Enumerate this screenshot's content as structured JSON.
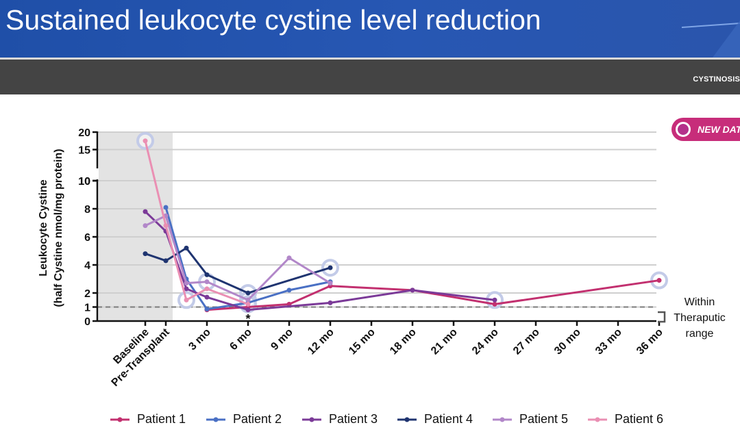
{
  "header": {
    "title": "Sustained leukocyte cystine level reduction",
    "brand": "CYSTINOSIS",
    "badge_label": "NEW DATA"
  },
  "colors": {
    "title_bar": "#2757b3",
    "sub_bar": "#444444",
    "badge": "#c72d7a",
    "baseline_shading": "#e3e3e3",
    "new_data_ring": "#c3cbe8"
  },
  "chart_data": {
    "type": "line",
    "ylabel_line1": "Leukocyte Cystine",
    "ylabel_line2": "(half Cystine nmol/mg protein)",
    "y_axis": {
      "broken": true,
      "upper_segment": {
        "range": [
          10,
          20
        ],
        "ticks": [
          "20",
          "15",
          "10"
        ]
      },
      "lower_segment": {
        "range": [
          0,
          10
        ],
        "ticks": [
          "10",
          "8",
          "6",
          "4",
          "2",
          "1",
          "0"
        ]
      }
    },
    "x_ticks": [
      {
        "label": "Baseline",
        "month": -1.5
      },
      {
        "label": "Pre-Transplant",
        "month": 0
      },
      {
        "label": "3 mo",
        "month": 3
      },
      {
        "label": "6 mo",
        "month": 6
      },
      {
        "label": "9 mo",
        "month": 9
      },
      {
        "label": "12 mo",
        "month": 12
      },
      {
        "label": "15 mo",
        "month": 15
      },
      {
        "label": "18 mo",
        "month": 18
      },
      {
        "label": "21 mo",
        "month": 21
      },
      {
        "label": "24 mo",
        "month": 24
      },
      {
        "label": "27 mo",
        "month": 27
      },
      {
        "label": "30 mo",
        "month": 30
      },
      {
        "label": "33 mo",
        "month": 33
      },
      {
        "label": "36 mo",
        "month": 36
      }
    ],
    "baseline_region": {
      "from_month": -3,
      "to_month": 0.5
    },
    "threshold": {
      "y": 1,
      "style": "dashed"
    },
    "annotation": {
      "text": "Within Theraputic range",
      "lines": [
        "Within",
        "Theraputic",
        "range"
      ]
    },
    "asterisk": {
      "text": "*",
      "month": 6
    },
    "series": [
      {
        "name": "Patient 1",
        "color": "#c2306f",
        "points": [
          [
            3,
            0.8
          ],
          [
            6,
            1.0
          ],
          [
            9,
            1.2
          ],
          [
            12,
            2.5
          ],
          [
            18,
            2.2
          ],
          [
            24,
            1.2
          ],
          [
            36,
            2.9
          ]
        ],
        "new_data": [
          [
            36,
            2.9
          ]
        ]
      },
      {
        "name": "Patient 2",
        "color": "#4a70c4",
        "points": [
          [
            0,
            8.1
          ],
          [
            1.5,
            3.0
          ],
          [
            3,
            0.85
          ],
          [
            6,
            1.3
          ],
          [
            9,
            2.2
          ],
          [
            12,
            2.8
          ]
        ],
        "new_data": []
      },
      {
        "name": "Patient 3",
        "color": "#7b3a98",
        "points": [
          [
            -1.5,
            7.8
          ],
          [
            0,
            6.4
          ],
          [
            1.5,
            2.3
          ],
          [
            3,
            1.7
          ],
          [
            6,
            0.8
          ],
          [
            12,
            1.3
          ],
          [
            18,
            2.2
          ],
          [
            24,
            1.5
          ]
        ],
        "new_data": [
          [
            24,
            1.5
          ]
        ]
      },
      {
        "name": "Patient 4",
        "color": "#1f3470",
        "points": [
          [
            -1.5,
            4.8
          ],
          [
            0,
            4.3
          ],
          [
            1.5,
            5.2
          ],
          [
            3,
            3.3
          ],
          [
            6,
            2.0
          ],
          [
            12,
            3.8
          ]
        ],
        "new_data": [
          [
            12,
            3.8
          ],
          [
            6,
            2.0
          ]
        ]
      },
      {
        "name": "Patient 5",
        "color": "#b287c9",
        "points": [
          [
            -1.5,
            6.8
          ],
          [
            0,
            7.5
          ],
          [
            1.5,
            2.7
          ],
          [
            3,
            2.8
          ],
          [
            6,
            1.5
          ],
          [
            9,
            4.5
          ],
          [
            12,
            2.7
          ]
        ],
        "new_data": [
          [
            3,
            2.8
          ],
          [
            6,
            1.5
          ]
        ]
      },
      {
        "name": "Patient 6",
        "color": "#ea8fb3",
        "points": [
          [
            -1.5,
            17.5
          ],
          [
            0,
            6.8
          ],
          [
            1.5,
            1.5
          ],
          [
            3,
            2.3
          ],
          [
            6,
            1.2
          ]
        ],
        "new_data": [
          [
            -1.5,
            17.5
          ],
          [
            1.5,
            1.5
          ],
          [
            6,
            1.2
          ]
        ]
      }
    ]
  }
}
